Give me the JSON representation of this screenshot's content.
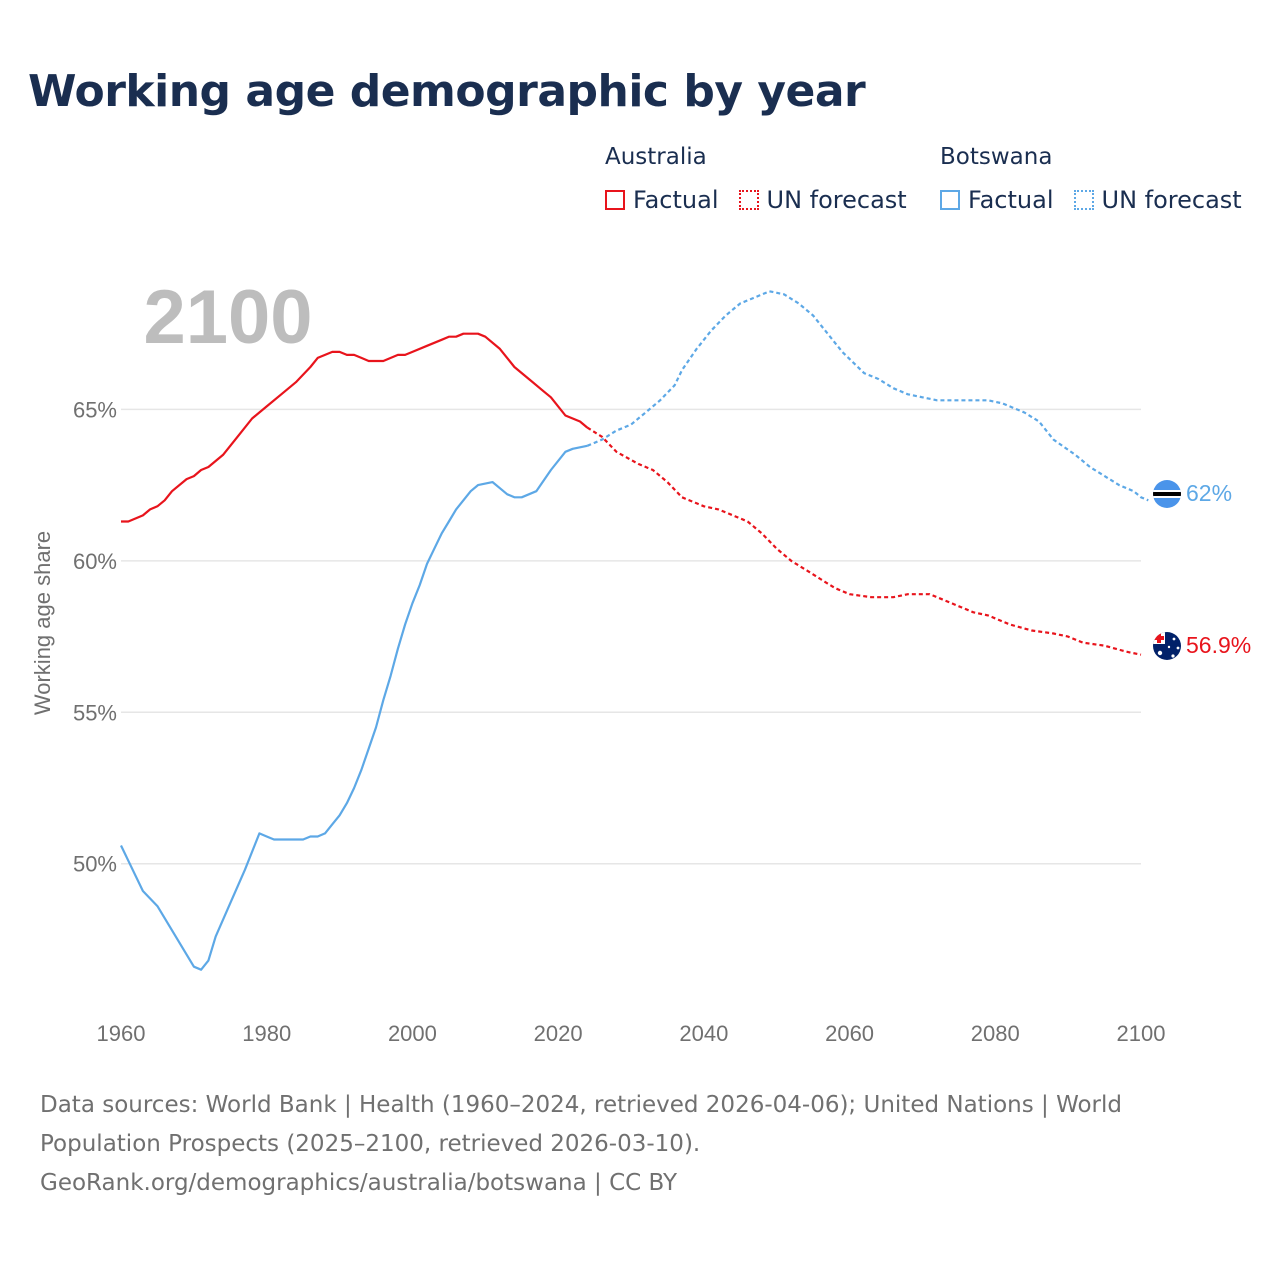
{
  "title": "Working age demographic by year",
  "legend": {
    "groups": [
      {
        "name": "Australia",
        "color": "#e8141c",
        "factual": "Factual",
        "forecast": "UN forecast"
      },
      {
        "name": "Botswana",
        "color": "#5da8e6",
        "factual": "Factual",
        "forecast": "UN forecast"
      }
    ]
  },
  "chart_data": {
    "type": "line",
    "title": "Working age demographic by year",
    "ylabel": "Working age share",
    "xlabel": "",
    "year_watermark": "2100",
    "xlim": [
      1960,
      2100
    ],
    "ylim": [
      45.5,
      70
    ],
    "x_ticks": [
      1960,
      1980,
      2000,
      2020,
      2040,
      2060,
      2080,
      2100
    ],
    "x_tick_labels": [
      "1960",
      "1980",
      "2000",
      "2020",
      "2040",
      "2060",
      "2080",
      "2100"
    ],
    "y_ticks": [
      50,
      55,
      60,
      65
    ],
    "y_tick_labels": [
      "50%",
      "55%",
      "60%",
      "65%"
    ],
    "grid": true,
    "series": [
      {
        "name": "Australia",
        "color": "#e8141c",
        "end_label": "56.9%",
        "factual": [
          [
            1960,
            61.3
          ],
          [
            1961,
            61.3
          ],
          [
            1963,
            61.5
          ],
          [
            1964,
            61.7
          ],
          [
            1965,
            61.8
          ],
          [
            1966,
            62.0
          ],
          [
            1967,
            62.3
          ],
          [
            1969,
            62.7
          ],
          [
            1970,
            62.8
          ],
          [
            1971,
            63.0
          ],
          [
            1972,
            63.1
          ],
          [
            1974,
            63.5
          ],
          [
            1976,
            64.1
          ],
          [
            1978,
            64.7
          ],
          [
            1980,
            65.1
          ],
          [
            1982,
            65.5
          ],
          [
            1984,
            65.9
          ],
          [
            1986,
            66.4
          ],
          [
            1987,
            66.7
          ],
          [
            1988,
            66.8
          ],
          [
            1989,
            66.9
          ],
          [
            1990,
            66.9
          ],
          [
            1991,
            66.8
          ],
          [
            1992,
            66.8
          ],
          [
            1993,
            66.7
          ],
          [
            1994,
            66.6
          ],
          [
            1996,
            66.6
          ],
          [
            1998,
            66.8
          ],
          [
            1999,
            66.8
          ],
          [
            2000,
            66.9
          ],
          [
            2002,
            67.1
          ],
          [
            2004,
            67.3
          ],
          [
            2005,
            67.4
          ],
          [
            2006,
            67.4
          ],
          [
            2007,
            67.5
          ],
          [
            2009,
            67.5
          ],
          [
            2010,
            67.4
          ],
          [
            2012,
            67.0
          ],
          [
            2014,
            66.4
          ],
          [
            2016,
            66.0
          ],
          [
            2018,
            65.6
          ],
          [
            2019,
            65.4
          ],
          [
            2021,
            64.8
          ],
          [
            2023,
            64.6
          ],
          [
            2024,
            64.4
          ]
        ],
        "forecast": [
          [
            2024,
            64.4
          ],
          [
            2026,
            64.1
          ],
          [
            2028,
            63.6
          ],
          [
            2031,
            63.2
          ],
          [
            2033,
            63.0
          ],
          [
            2035,
            62.6
          ],
          [
            2037,
            62.1
          ],
          [
            2040,
            61.8
          ],
          [
            2042,
            61.7
          ],
          [
            2044,
            61.5
          ],
          [
            2046,
            61.3
          ],
          [
            2048,
            60.9
          ],
          [
            2050,
            60.4
          ],
          [
            2052,
            60.0
          ],
          [
            2054,
            59.7
          ],
          [
            2056,
            59.4
          ],
          [
            2058,
            59.1
          ],
          [
            2060,
            58.9
          ],
          [
            2063,
            58.8
          ],
          [
            2066,
            58.8
          ],
          [
            2068,
            58.9
          ],
          [
            2071,
            58.9
          ],
          [
            2073,
            58.7
          ],
          [
            2075,
            58.5
          ],
          [
            2077,
            58.3
          ],
          [
            2079,
            58.2
          ],
          [
            2082,
            57.9
          ],
          [
            2085,
            57.7
          ],
          [
            2088,
            57.6
          ],
          [
            2090,
            57.5
          ],
          [
            2092,
            57.3
          ],
          [
            2095,
            57.2
          ],
          [
            2098,
            57.0
          ],
          [
            2100,
            56.9
          ]
        ]
      },
      {
        "name": "Botswana",
        "color": "#5da8e6",
        "end_label": "62%",
        "factual": [
          [
            1960,
            50.6
          ],
          [
            1961,
            50.1
          ],
          [
            1963,
            49.1
          ],
          [
            1965,
            48.6
          ],
          [
            1966,
            48.2
          ],
          [
            1967,
            47.8
          ],
          [
            1969,
            47.0
          ],
          [
            1970,
            46.6
          ],
          [
            1971,
            46.5
          ],
          [
            1972,
            46.8
          ],
          [
            1973,
            47.6
          ],
          [
            1975,
            48.7
          ],
          [
            1977,
            49.8
          ],
          [
            1979,
            51.0
          ],
          [
            1980,
            50.9
          ],
          [
            1981,
            50.8
          ],
          [
            1983,
            50.8
          ],
          [
            1985,
            50.8
          ],
          [
            1986,
            50.9
          ],
          [
            1987,
            50.9
          ],
          [
            1988,
            51.0
          ],
          [
            1989,
            51.3
          ],
          [
            1990,
            51.6
          ],
          [
            1991,
            52.0
          ],
          [
            1992,
            52.5
          ],
          [
            1993,
            53.1
          ],
          [
            1994,
            53.8
          ],
          [
            1995,
            54.5
          ],
          [
            1996,
            55.4
          ],
          [
            1997,
            56.2
          ],
          [
            1998,
            57.1
          ],
          [
            1999,
            57.9
          ],
          [
            2000,
            58.6
          ],
          [
            2001,
            59.2
          ],
          [
            2002,
            59.9
          ],
          [
            2003,
            60.4
          ],
          [
            2004,
            60.9
          ],
          [
            2005,
            61.3
          ],
          [
            2006,
            61.7
          ],
          [
            2007,
            62.0
          ],
          [
            2008,
            62.3
          ],
          [
            2009,
            62.5
          ],
          [
            2011,
            62.6
          ],
          [
            2012,
            62.4
          ],
          [
            2013,
            62.2
          ],
          [
            2014,
            62.1
          ],
          [
            2015,
            62.1
          ],
          [
            2017,
            62.3
          ],
          [
            2019,
            63.0
          ],
          [
            2021,
            63.6
          ],
          [
            2022,
            63.7
          ],
          [
            2024,
            63.8
          ]
        ],
        "forecast": [
          [
            2024,
            63.8
          ],
          [
            2026,
            64.0
          ],
          [
            2028,
            64.3
          ],
          [
            2030,
            64.5
          ],
          [
            2032,
            64.9
          ],
          [
            2034,
            65.3
          ],
          [
            2036,
            65.8
          ],
          [
            2037,
            66.3
          ],
          [
            2039,
            67.0
          ],
          [
            2041,
            67.6
          ],
          [
            2043,
            68.1
          ],
          [
            2045,
            68.5
          ],
          [
            2047,
            68.7
          ],
          [
            2049,
            68.9
          ],
          [
            2051,
            68.8
          ],
          [
            2053,
            68.5
          ],
          [
            2055,
            68.1
          ],
          [
            2057,
            67.5
          ],
          [
            2059,
            66.9
          ],
          [
            2062,
            66.2
          ],
          [
            2064,
            66.0
          ],
          [
            2066,
            65.7
          ],
          [
            2068,
            65.5
          ],
          [
            2070,
            65.4
          ],
          [
            2072,
            65.3
          ],
          [
            2076,
            65.3
          ],
          [
            2079,
            65.3
          ],
          [
            2081,
            65.2
          ],
          [
            2084,
            64.9
          ],
          [
            2086,
            64.6
          ],
          [
            2088,
            64.0
          ],
          [
            2091,
            63.5
          ],
          [
            2093,
            63.1
          ],
          [
            2095,
            62.8
          ],
          [
            2097,
            62.5
          ],
          [
            2099,
            62.3
          ],
          [
            2100,
            62.1
          ],
          [
            2101,
            62.0
          ]
        ]
      }
    ]
  },
  "footer": {
    "line1": "Data sources: World Bank | Health (1960–2024, retrieved 2026-04-06); United Nations | World",
    "line2": "Population Prospects (2025–2100, retrieved 2026-03-10).",
    "line3": "GeoRank.org/demographics/australia/botswana | CC BY"
  }
}
